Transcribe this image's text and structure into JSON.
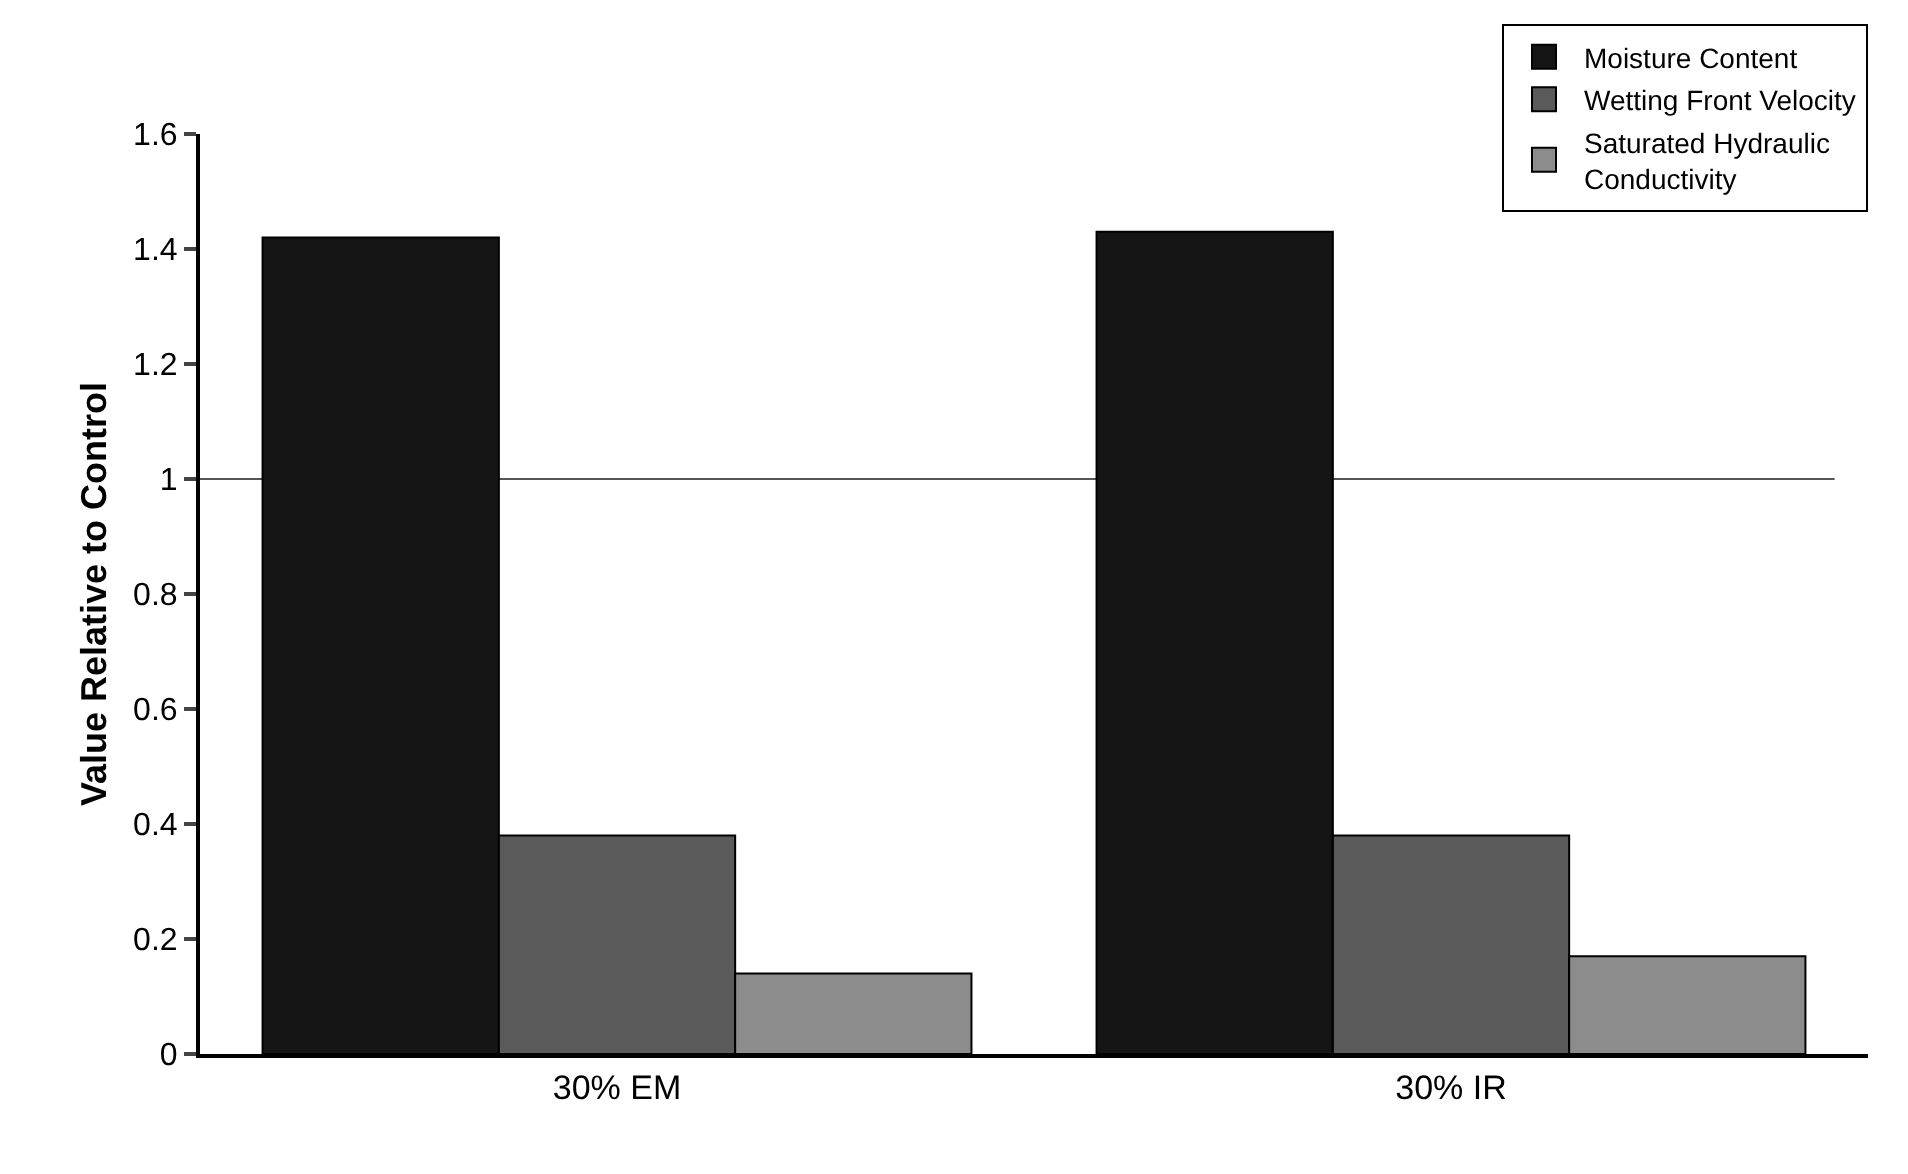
{
  "chart_data": {
    "type": "bar",
    "ylabel": "Value Relative to Control",
    "categories": [
      "30% EM",
      "30% IR"
    ],
    "series": [
      {
        "name": "Moisture Content",
        "color": "#151515",
        "values": [
          1.42,
          1.43
        ]
      },
      {
        "name": "Wetting Front Velocity",
        "color": "#5a5a5a",
        "values": [
          0.38,
          0.38
        ]
      },
      {
        "name": "Saturated Hydraulic Conductivity",
        "color": "#8c8c8c",
        "values": [
          0.14,
          0.17
        ]
      }
    ],
    "ylim": [
      0,
      1.6
    ],
    "yticks": [
      0,
      0.2,
      0.4,
      0.6,
      0.8,
      1,
      1.2,
      1.4,
      1.6
    ],
    "grid": false,
    "legend": "top right",
    "ref_lines": [
      {
        "axis": "y",
        "value": 1,
        "color": "#555555"
      }
    ]
  }
}
